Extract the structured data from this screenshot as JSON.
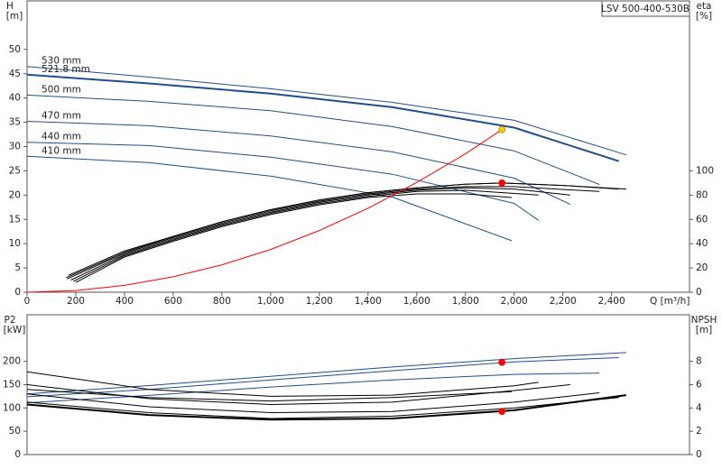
{
  "chart_data": [
    {
      "type": "line",
      "title": "LSV 500-400-530B",
      "ylabel": "H",
      "yunit": "[m]",
      "y2label": "eta",
      "y2unit": "[%]",
      "xlabel": "Q [m³/h]",
      "xlim": [
        0,
        2720
      ],
      "xticks": [
        0,
        200,
        400,
        600,
        800,
        {
          "value": 1000,
          "label": "1,000"
        },
        {
          "value": 1200,
          "label": "1,200"
        },
        {
          "value": 1400,
          "label": "1,400"
        },
        {
          "value": 1600,
          "label": "1,600"
        },
        {
          "value": 1800,
          "label": "1,800"
        },
        {
          "value": 2000,
          "label": "2,000"
        },
        {
          "value": 2200,
          "label": "2,200"
        },
        {
          "value": 2400,
          "label": "2,400"
        }
      ],
      "ylim": [
        0,
        60
      ],
      "yticks": [
        0,
        5,
        10,
        15,
        20,
        25,
        30,
        35,
        40,
        45,
        50
      ],
      "y2lim": [
        0,
        240
      ],
      "y2ticks": [
        0,
        20,
        40,
        60,
        80,
        100
      ],
      "series": [
        {
          "name": "530 mm",
          "color": "#1f4e8c",
          "x": [
            0,
            500,
            1000,
            1500,
            2000,
            2460
          ],
          "values": [
            46.5,
            44.3,
            41.9,
            39.1,
            35.4,
            28.3
          ]
        },
        {
          "name": "521.8 mm",
          "color": "#1f4e8c",
          "width": 2,
          "x": [
            0,
            500,
            1000,
            1500,
            2000,
            2430
          ],
          "values": [
            44.8,
            43,
            40.9,
            38.1,
            33.9,
            27
          ]
        },
        {
          "name": "500 mm",
          "color": "#1f4e8c",
          "x": [
            0,
            500,
            1000,
            1500,
            2000,
            2350
          ],
          "values": [
            40.6,
            39.3,
            37.4,
            34.1,
            29.1,
            22.2
          ]
        },
        {
          "name": "470 mm",
          "color": "#1f4e8c",
          "x": [
            0,
            500,
            1000,
            1500,
            2000,
            2230
          ],
          "values": [
            35.2,
            34.3,
            32.2,
            28.9,
            23.5,
            18.1
          ]
        },
        {
          "name": "440 mm",
          "color": "#1f4e8c",
          "x": [
            0,
            500,
            1000,
            1500,
            2000,
            2100
          ],
          "values": [
            30.9,
            30.2,
            27.8,
            24.3,
            18.3,
            14.8
          ]
        },
        {
          "name": "410 mm",
          "color": "#1f4e8c",
          "x": [
            0,
            500,
            1000,
            1500,
            1990
          ],
          "values": [
            28,
            26.7,
            23.9,
            19.6,
            10.6
          ]
        },
        {
          "color": "#000000",
          "axis": "y2",
          "x": [
            170,
            400,
            600,
            800,
            1000,
            1200,
            1400,
            1600,
            1800,
            1950,
            2200,
            2460
          ],
          "values": [
            14,
            34,
            46,
            58,
            68,
            76,
            82,
            86,
            89,
            90,
            88,
            85
          ]
        },
        {
          "color": "#000000",
          "axis": "y2",
          "x": [
            160,
            400,
            600,
            800,
            1000,
            1200,
            1400,
            1600,
            1800,
            1950,
            2200,
            2430
          ],
          "values": [
            12,
            33,
            46,
            58,
            68,
            76,
            82,
            86,
            89,
            90,
            88,
            85
          ]
        },
        {
          "color": "#000000",
          "axis": "y2",
          "x": [
            165,
            400,
            600,
            800,
            1000,
            1200,
            1400,
            1600,
            1800,
            2000,
            2350
          ],
          "values": [
            11,
            32,
            45,
            57,
            67,
            75,
            81,
            85,
            87,
            87,
            83
          ]
        },
        {
          "color": "#000000",
          "axis": "y2",
          "x": [
            180,
            400,
            600,
            800,
            1000,
            1200,
            1400,
            1600,
            1800,
            2000,
            2230
          ],
          "values": [
            10,
            31,
            44,
            56,
            66,
            74,
            80,
            84,
            86,
            85,
            80
          ]
        },
        {
          "color": "#000000",
          "axis": "y2",
          "x": [
            190,
            400,
            600,
            800,
            1000,
            1200,
            1400,
            1600,
            1800,
            2100
          ],
          "values": [
            9,
            30,
            43,
            55,
            65,
            73,
            79,
            83,
            84,
            80
          ]
        },
        {
          "color": "#000000",
          "axis": "y2",
          "x": [
            200,
            400,
            600,
            800,
            1000,
            1200,
            1400,
            1600,
            1800,
            1990
          ],
          "values": [
            8,
            29,
            42,
            54,
            64,
            72,
            78,
            81,
            81,
            78
          ]
        },
        {
          "color": "#ff0000",
          "x": [
            0,
            200,
            400,
            600,
            800,
            1000,
            1200,
            1400,
            1600,
            1800,
            1950
          ],
          "values": [
            0,
            0.35,
            1.41,
            3.17,
            5.64,
            8.81,
            12.7,
            17.3,
            22.6,
            28.5,
            33.5
          ]
        },
        {
          "color": "#ffcc00",
          "marker": true,
          "x": [
            1950
          ],
          "values": [
            33.5
          ]
        },
        {
          "color": "#ff0000",
          "marker": true,
          "axis": "y2",
          "x": [
            1950
          ],
          "values": [
            90
          ]
        }
      ]
    },
    {
      "type": "line",
      "ylabel": "P2",
      "yunit": "[kW]",
      "y2label": "NPSH",
      "y2unit": "[m]",
      "xlim": [
        0,
        2720
      ],
      "ylim": [
        0,
        300
      ],
      "yticks": [
        0,
        50,
        100,
        150,
        200
      ],
      "y2lim": [
        0,
        12
      ],
      "y2ticks": [
        0,
        2,
        4,
        6,
        8
      ],
      "series": [
        {
          "color": "#1f4e8c",
          "x": [
            0,
            500,
            1000,
            1500,
            2000,
            2460
          ],
          "values": [
            130,
            148,
            168,
            188,
            206,
            219
          ]
        },
        {
          "color": "#1f4e8c",
          "x": [
            0,
            500,
            1000,
            1500,
            2000,
            2430
          ],
          "values": [
            124,
            140,
            160,
            180,
            199,
            208
          ]
        },
        {
          "color": "#1f4e8c",
          "x": [
            0,
            500,
            1000,
            1500,
            2000,
            2350
          ],
          "values": [
            111,
            127,
            145,
            160,
            172,
            175
          ]
        },
        {
          "color": "#000000",
          "width": 2,
          "axis": "y2",
          "x": [
            0,
            500,
            1000,
            1500,
            2000,
            2460
          ],
          "values": [
            4.3,
            3.4,
            3.0,
            3.1,
            3.8,
            5.1
          ]
        },
        {
          "color": "#000000",
          "axis": "y2",
          "x": [
            0,
            500,
            1000,
            1500,
            2000,
            2430
          ],
          "values": [
            4.5,
            3.6,
            3.1,
            3.3,
            4.0,
            4.9
          ]
        },
        {
          "color": "#000000",
          "axis": "y2",
          "x": [
            0,
            500,
            1000,
            1500,
            2000,
            2350
          ],
          "values": [
            5.2,
            4.1,
            3.6,
            3.7,
            4.5,
            5.3
          ]
        },
        {
          "color": "#000000",
          "axis": "y2",
          "x": [
            0,
            500,
            1000,
            1500,
            2000,
            2230
          ],
          "values": [
            6.0,
            4.8,
            4.3,
            4.5,
            5.5,
            6.0
          ]
        },
        {
          "color": "#000000",
          "axis": "y2",
          "x": [
            0,
            500,
            1000,
            1500,
            2000,
            2100
          ],
          "values": [
            7.1,
            5.6,
            5.0,
            5.1,
            5.9,
            6.2
          ]
        },
        {
          "color": "#000000",
          "axis": "y2",
          "x": [
            0,
            500,
            1000,
            1500,
            1990
          ],
          "values": [
            5.6,
            4.9,
            4.6,
            4.9,
            5.4
          ]
        },
        {
          "color": "#ff0000",
          "marker": true,
          "x": [
            1950
          ],
          "values": [
            198
          ]
        },
        {
          "color": "#ff0000",
          "marker": true,
          "axis": "y2",
          "x": [
            1950
          ],
          "values": [
            3.7
          ]
        }
      ]
    }
  ]
}
